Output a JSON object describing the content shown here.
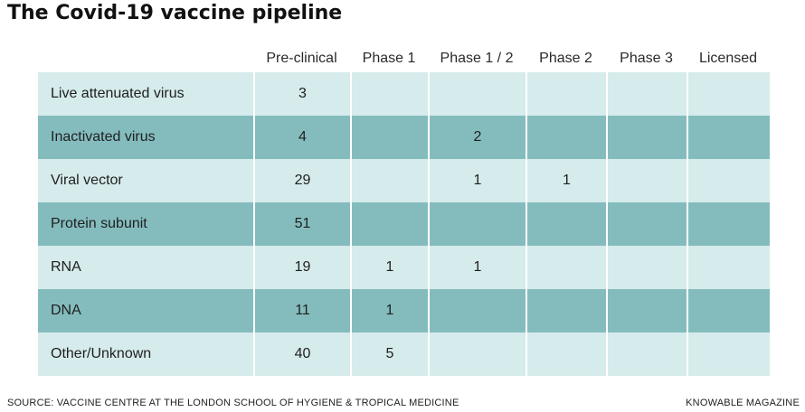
{
  "title": "The Covid-19 vaccine pipeline",
  "chart_data": {
    "type": "table",
    "title": "The Covid-19 vaccine pipeline",
    "columns": [
      "Pre-clinical",
      "Phase 1",
      "Phase 1 / 2",
      "Phase 2",
      "Phase 3",
      "Licensed"
    ],
    "rows": [
      {
        "label": "Live attenuated virus",
        "values": [
          "3",
          "",
          "",
          "",
          "",
          ""
        ]
      },
      {
        "label": "Inactivated virus",
        "values": [
          "4",
          "",
          "2",
          "",
          "",
          ""
        ]
      },
      {
        "label": "Viral vector",
        "values": [
          "29",
          "",
          "1",
          "1",
          "",
          ""
        ]
      },
      {
        "label": "Protein subunit",
        "values": [
          "51",
          "",
          "",
          "",
          "",
          ""
        ]
      },
      {
        "label": "RNA",
        "values": [
          "19",
          "1",
          "1",
          "",
          "",
          ""
        ]
      },
      {
        "label": "DNA",
        "values": [
          "11",
          "1",
          "",
          "",
          "",
          ""
        ]
      },
      {
        "label": "Other/Unknown",
        "values": [
          "40",
          "5",
          "",
          "",
          "",
          ""
        ]
      }
    ],
    "row_colors": [
      "#d6ebeb",
      "#84bcbe"
    ]
  },
  "footer": {
    "source": "SOURCE: VACCINE CENTRE AT THE LONDON SCHOOL OF HYGIENE & TROPICAL MEDICINE",
    "brand": "KNOWABLE MAGAZINE"
  }
}
